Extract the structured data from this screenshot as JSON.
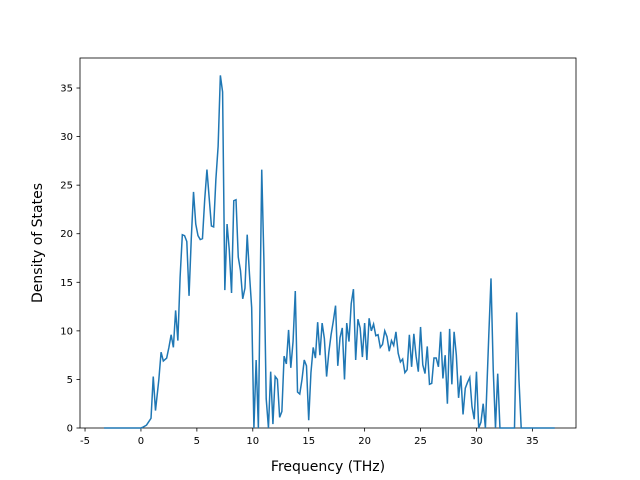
{
  "chart_data": {
    "type": "line",
    "xlabel": "Frequency (THz)",
    "ylabel": "Density of States",
    "xlim": [
      -5.45,
      38.9
    ],
    "ylim": [
      0,
      38.09
    ],
    "xticks": [
      -5,
      0,
      5,
      10,
      15,
      20,
      25,
      30,
      35
    ],
    "yticks": [
      0,
      5,
      10,
      15,
      20,
      25,
      30,
      35
    ],
    "series": [
      {
        "color": "#1f77b4",
        "x": [
          -3.3,
          0,
          0.2,
          0.5,
          0.9,
          1.1,
          1.3,
          1.6,
          1.8,
          2,
          2.3,
          2.5,
          2.7,
          2.9,
          3.1,
          3.3,
          3.5,
          3.7,
          3.9,
          4.1,
          4.3,
          4.5,
          4.7,
          4.9,
          5.1,
          5.3,
          5.5,
          5.7,
          5.9,
          6.1,
          6.3,
          6.5,
          6.7,
          6.9,
          7.1,
          7.3,
          7.5,
          7.7,
          7.9,
          8.1,
          8.3,
          8.5,
          8.7,
          8.9,
          9.1,
          9.3,
          9.5,
          9.7,
          9.9,
          10.1,
          10.3,
          10.5,
          10.8,
          11,
          11.2,
          11.4,
          11.6,
          11.8,
          12,
          12.2,
          12.4,
          12.6,
          12.8,
          13,
          13.2,
          13.4,
          13.6,
          13.8,
          14,
          14.2,
          14.4,
          14.6,
          14.8,
          15,
          15.2,
          15.4,
          15.6,
          15.8,
          16,
          16.2,
          16.4,
          16.6,
          16.8,
          17,
          17.2,
          17.4,
          17.6,
          17.8,
          18,
          18.2,
          18.4,
          18.6,
          18.8,
          19,
          19.2,
          19.4,
          19.6,
          19.8,
          20,
          20.2,
          20.4,
          20.6,
          20.8,
          21,
          21.2,
          21.4,
          21.6,
          21.8,
          22,
          22.2,
          22.4,
          22.6,
          22.8,
          23,
          23.2,
          23.4,
          23.6,
          23.8,
          24,
          24.2,
          24.4,
          24.6,
          24.8,
          25,
          25.2,
          25.4,
          25.6,
          25.8,
          26,
          26.2,
          26.4,
          26.6,
          26.8,
          27,
          27.2,
          27.4,
          27.6,
          27.8,
          28,
          28.2,
          28.4,
          28.6,
          28.8,
          29,
          29.2,
          29.4,
          29.6,
          29.8,
          30,
          30.2,
          30.4,
          30.6,
          30.8,
          31.1,
          31.3,
          31.5,
          31.7,
          31.9,
          32.1,
          33.4,
          33.6,
          33.8,
          34,
          37
        ],
        "values": [
          0,
          0,
          0.1,
          0.3,
          1,
          5.3,
          1.8,
          5,
          7.8,
          6.9,
          7.2,
          8.3,
          9.6,
          8.3,
          12.1,
          9,
          15.5,
          19.9,
          19.8,
          19.2,
          13.6,
          19.5,
          24.3,
          21,
          19.8,
          19.4,
          19.5,
          23.5,
          26.6,
          23.7,
          20.8,
          20.7,
          25.6,
          29,
          36.3,
          34.6,
          14.2,
          21,
          18.3,
          13.9,
          23.4,
          23.5,
          17.6,
          16.2,
          13.3,
          14.4,
          19.9,
          15.9,
          12.4,
          0,
          7,
          0,
          26.6,
          17,
          3,
          0,
          5.8,
          0.4,
          5.3,
          5,
          1.1,
          1.7,
          7.4,
          6.6,
          10.1,
          6.2,
          8.9,
          14.1,
          3.7,
          3.5,
          5,
          7,
          6.4,
          0.8,
          5.7,
          8.3,
          7.2,
          10.9,
          7.5,
          10.8,
          9.2,
          5.3,
          7.8,
          9.6,
          11,
          12.6,
          6.4,
          9.3,
          10.3,
          5,
          10.8,
          8.9,
          12.8,
          14.3,
          7,
          11.2,
          10.3,
          7.3,
          10.8,
          7,
          11.3,
          10,
          10.7,
          9.5,
          9.6,
          8.3,
          8.6,
          10,
          9.4,
          7.9,
          9,
          8.5,
          9.9,
          7.7,
          6.8,
          7.1,
          5.7,
          6,
          9.6,
          6.3,
          9.7,
          7.4,
          5.8,
          10.4,
          6.5,
          5.6,
          8.4,
          4.5,
          4.6,
          7.2,
          7.2,
          6.3,
          9.9,
          5.1,
          7.5,
          2.5,
          10.2,
          4.5,
          9.9,
          7.5,
          3.1,
          5.4,
          1.4,
          4.1,
          4.7,
          5.2,
          2.2,
          0.9,
          5.8,
          0,
          0.6,
          2.5,
          0,
          9.5,
          15.4,
          6,
          0,
          5.6,
          0,
          0,
          11.9,
          5,
          0,
          0
        ]
      }
    ]
  }
}
